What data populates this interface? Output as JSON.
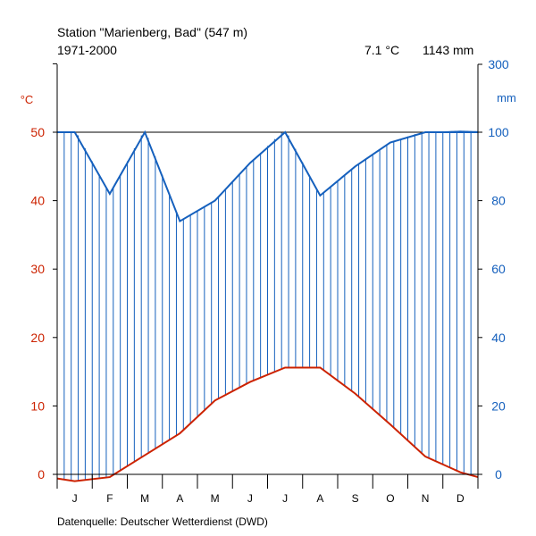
{
  "header": {
    "station": "Station \"Marienberg, Bad\" (547 m)",
    "period": "1971-2000",
    "mean_temp": "7.1 °C",
    "annual_precip": "1143 mm"
  },
  "footer": {
    "source": "Datenquelle: Deutscher Wetterdienst (DWD)"
  },
  "colors": {
    "temperature": "#cc2200",
    "precipitation": "#1560bd",
    "axis": "#000000"
  },
  "chart_data": {
    "type": "line",
    "title": "Station \"Marienberg, Bad\" (547 m)",
    "subtitle": "1971-2000",
    "categories": [
      "J",
      "F",
      "M",
      "A",
      "M",
      "J",
      "J",
      "A",
      "S",
      "O",
      "N",
      "D"
    ],
    "left_axis": {
      "label": "°C",
      "ticks": [
        "0",
        "10",
        "20",
        "30",
        "40",
        "50"
      ],
      "range": [
        0,
        60
      ]
    },
    "right_axis": {
      "label": "mm",
      "ticks": [
        "0",
        "20",
        "40",
        "60",
        "80",
        "100",
        "300"
      ],
      "range_lower": [
        0,
        100
      ],
      "range_upper": [
        100,
        300
      ]
    },
    "series": [
      {
        "name": "°C",
        "axis": "left",
        "x": [
          0,
          0.5,
          1.5,
          2.5,
          3.5,
          4.5,
          5.5,
          6.5,
          7.5,
          8.5,
          9.5,
          10.5,
          11.5,
          12
        ],
        "values": [
          -0.6,
          -1.0,
          -0.4,
          2.8,
          6.0,
          10.8,
          13.5,
          15.6,
          15.6,
          11.8,
          7.3,
          2.6,
          0.3,
          -0.4
        ]
      },
      {
        "name": "mm",
        "axis": "right",
        "x": [
          0,
          0.5,
          1.5,
          2.5,
          3.5,
          4.5,
          5.5,
          6.5,
          7.5,
          8.5,
          9.5,
          10.5,
          11.5,
          12
        ],
        "values": [
          101.5,
          101,
          82,
          101,
          74,
          80,
          91,
          101,
          81.5,
          90,
          97,
          100.5,
          104.5,
          103
        ]
      }
    ],
    "annotations": [
      "7.1 °C",
      "1143 mm"
    ],
    "grid": false
  }
}
